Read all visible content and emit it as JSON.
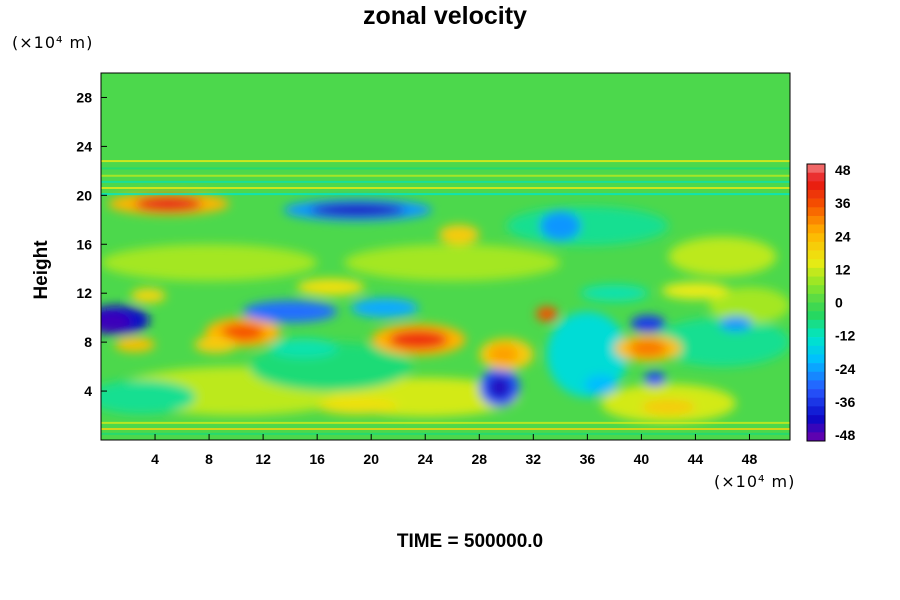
{
  "chart_data": {
    "type": "heatmap",
    "title": "zonal velocity",
    "ylabel": "Height",
    "xlabel": "",
    "x_unit": "(×10⁴ m)",
    "y_unit": "(×10⁴ m)",
    "xlim": [
      0,
      51
    ],
    "ylim": [
      0,
      30
    ],
    "x_ticks": [
      "4",
      "8",
      "12",
      "16",
      "20",
      "24",
      "28",
      "32",
      "36",
      "40",
      "44",
      "48"
    ],
    "y_ticks": [
      "4",
      "8",
      "12",
      "16",
      "20",
      "24",
      "28"
    ],
    "colorbar": {
      "range": [
        -48,
        48
      ],
      "ticks": [
        "48",
        "36",
        "24",
        "12",
        "0",
        "-12",
        "-24",
        "-36",
        "-48"
      ]
    },
    "features": [
      {
        "kind": "max",
        "x": 5,
        "y": 19.3,
        "value": 42
      },
      {
        "kind": "min",
        "x": 19,
        "y": 18.8,
        "value": -42
      },
      {
        "kind": "min",
        "x": 1,
        "y": 9.8,
        "value": -40
      },
      {
        "kind": "max",
        "x": 23.5,
        "y": 8.2,
        "value": 38
      },
      {
        "kind": "max",
        "x": 10.5,
        "y": 8.8,
        "value": 34
      },
      {
        "kind": "min",
        "x": 29.5,
        "y": 4.3,
        "value": -42
      },
      {
        "kind": "max",
        "x": 40.5,
        "y": 7.5,
        "value": 30
      },
      {
        "kind": "min",
        "x": 14,
        "y": 10.5,
        "value": -30
      },
      {
        "kind": "min",
        "x": 40.5,
        "y": 9.5,
        "value": -34
      },
      {
        "kind": "max",
        "x": 30,
        "y": 7,
        "value": 24
      }
    ]
  },
  "footer": "TIME = 500000.0"
}
